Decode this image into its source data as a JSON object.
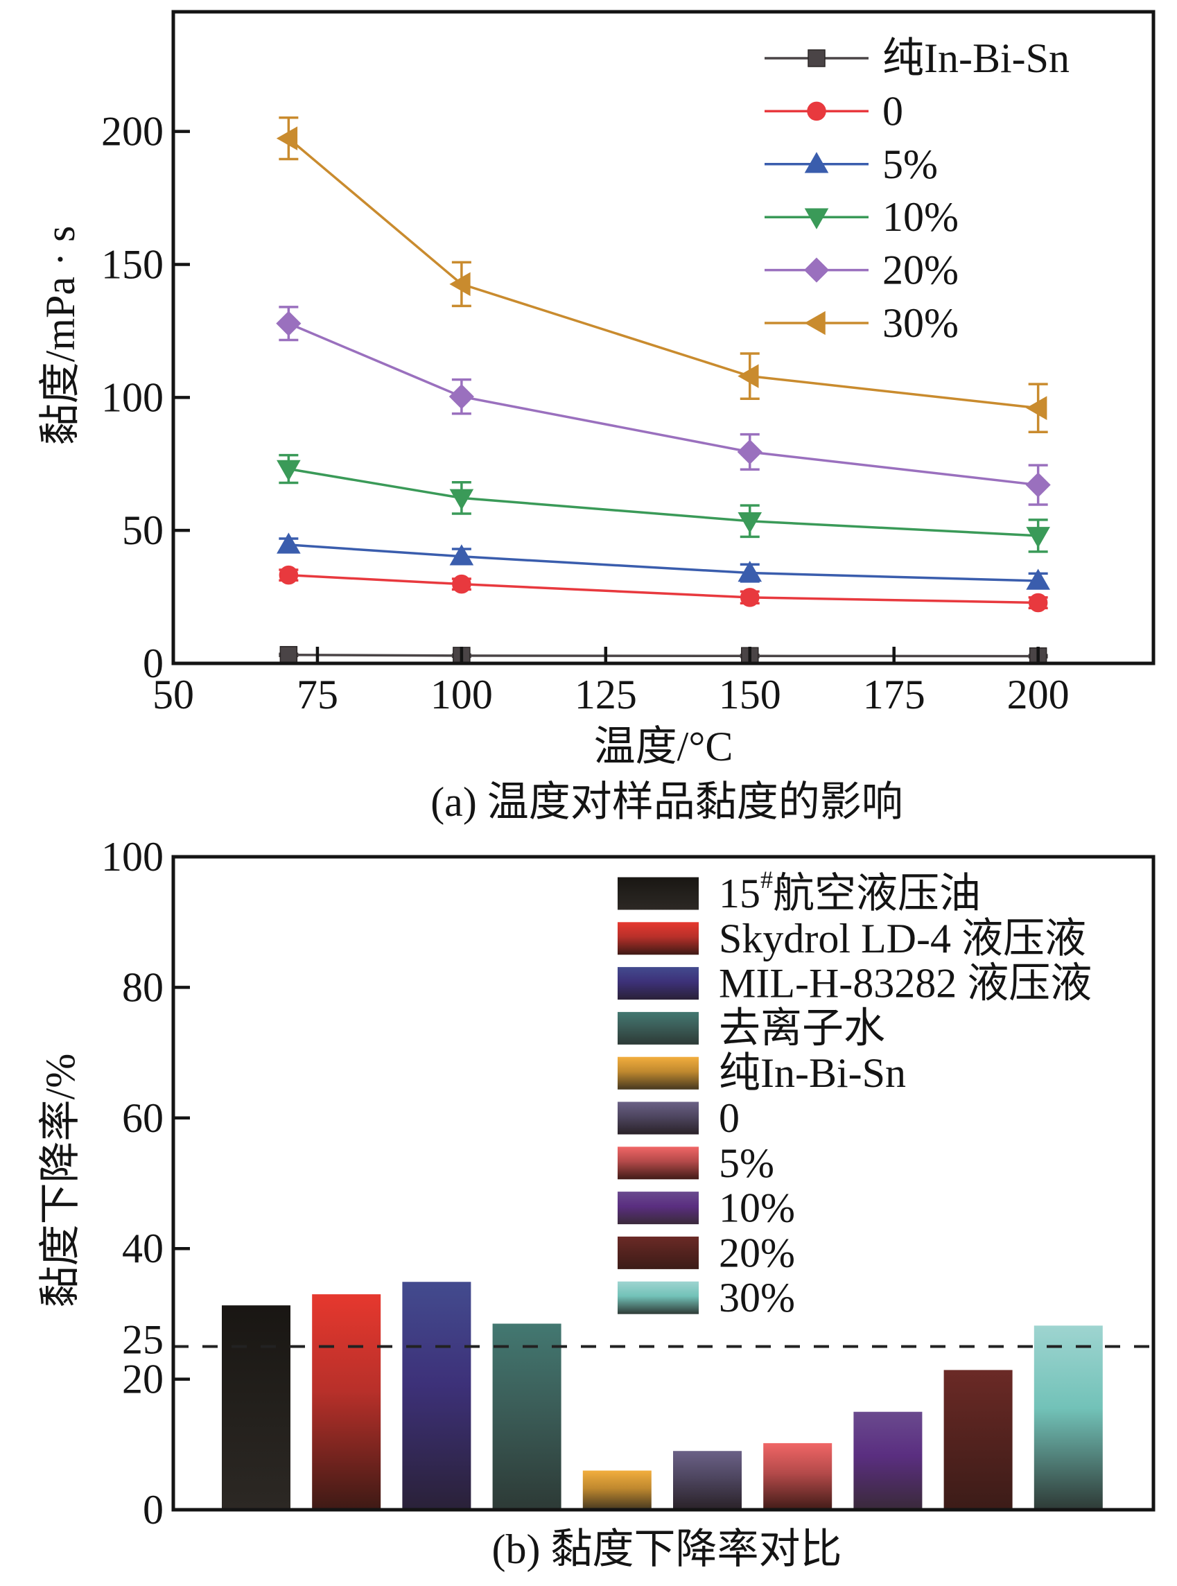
{
  "chart_data": [
    {
      "id": "a",
      "type": "line",
      "title": "",
      "caption": "(a) 温度对样品黏度的影响",
      "xlabel": "温度/°C",
      "ylabel": "黏度/mPa · s",
      "xlim": [
        50,
        220
      ],
      "ylim": [
        0,
        245
      ],
      "xticks": [
        50,
        75,
        100,
        125,
        150,
        175,
        200
      ],
      "yticks": [
        0,
        50,
        100,
        150,
        200
      ],
      "grid": false,
      "legend_position": "top-right",
      "x": [
        70,
        100,
        150,
        200
      ],
      "series": [
        {
          "name": "纯In-Bi-Sn",
          "marker": "square",
          "color": "#4a4446",
          "values": [
            3.2,
            2.9,
            2.8,
            2.7
          ],
          "errors": [
            0.4,
            0.4,
            0.4,
            0.4
          ]
        },
        {
          "name": "0",
          "marker": "circle",
          "color": "#e8393e",
          "values": [
            33.2,
            29.8,
            24.8,
            22.8
          ],
          "errors": [
            2.0,
            2.0,
            2.2,
            2.0
          ]
        },
        {
          "name": "5%",
          "marker": "triangle-up",
          "color": "#3a5dad",
          "values": [
            44.6,
            40.2,
            34.0,
            31.0
          ],
          "errors": [
            2.3,
            2.8,
            3.2,
            2.8
          ]
        },
        {
          "name": "10%",
          "marker": "triangle-down",
          "color": "#3a9a58",
          "values": [
            73.1,
            62.2,
            53.5,
            48.0
          ],
          "errors": [
            5.2,
            5.9,
            5.9,
            6.0
          ]
        },
        {
          "name": "20%",
          "marker": "diamond",
          "color": "#9a70be",
          "values": [
            127.8,
            100.3,
            79.5,
            67.1
          ],
          "errors": [
            6.2,
            6.4,
            6.6,
            7.4
          ]
        },
        {
          "name": "30%",
          "marker": "triangle-left",
          "color": "#c98b2e",
          "values": [
            197.4,
            142.6,
            108.0,
            96.0
          ],
          "errors": [
            7.8,
            8.2,
            8.5,
            9.0
          ]
        }
      ]
    },
    {
      "id": "b",
      "type": "bar",
      "title": "",
      "caption": "(b) 黏度下降率对比",
      "xlabel": "",
      "ylabel": "黏度下降率/%",
      "ylim": [
        0,
        100
      ],
      "yticks": [
        0,
        20,
        25,
        40,
        60,
        80,
        100
      ],
      "grid": false,
      "legend_position": "top-right",
      "reference_line": {
        "y": 25,
        "style": "dashed",
        "color": "#222222"
      },
      "categories": [
        "15#航空液压油",
        "Skydrol LD-4 液压液",
        "MIL-H-83282 液压液",
        "去离子水",
        "纯In-Bi-Sn",
        "0",
        "5%",
        "10%",
        "20%",
        "30%"
      ],
      "values": [
        31.3,
        33.0,
        34.9,
        28.5,
        6.0,
        9.0,
        10.2,
        15.0,
        21.4,
        28.2
      ],
      "legend_entries": [
        {
          "main": "15",
          "sup": "#",
          "rest": "航空液压油"
        },
        {
          "main": "Skydrol LD-4 液压液"
        },
        {
          "main": "MIL-H-83282 液压液"
        },
        {
          "main": "去离子水"
        },
        {
          "main": "纯In-Bi-Sn"
        },
        {
          "main": "0"
        },
        {
          "main": "5%"
        },
        {
          "main": "10%"
        },
        {
          "main": "20%"
        },
        {
          "main": "30%"
        }
      ],
      "bar_gradients": [
        [
          "#191613",
          "#221f1b",
          "#2c2824"
        ],
        [
          "#e6382e",
          "#b8302a",
          "#3e1a15"
        ],
        [
          "#434b8e",
          "#3d3179",
          "#2a2138"
        ],
        [
          "#437871",
          "#3b5d58",
          "#2d3a36"
        ],
        [
          "#f2ae3e",
          "#c0892f",
          "#463820"
        ],
        [
          "#6b6186",
          "#4e4660",
          "#2a2228"
        ],
        [
          "#f06666",
          "#b44a4a",
          "#421c18"
        ],
        [
          "#6a4a8e",
          "#5a2e80",
          "#3a2a3a"
        ],
        [
          "#6b2a26",
          "#55231f",
          "#3c1c18"
        ],
        [
          "#9ed4d0",
          "#72c2b8",
          "#2e3a36"
        ]
      ]
    }
  ]
}
